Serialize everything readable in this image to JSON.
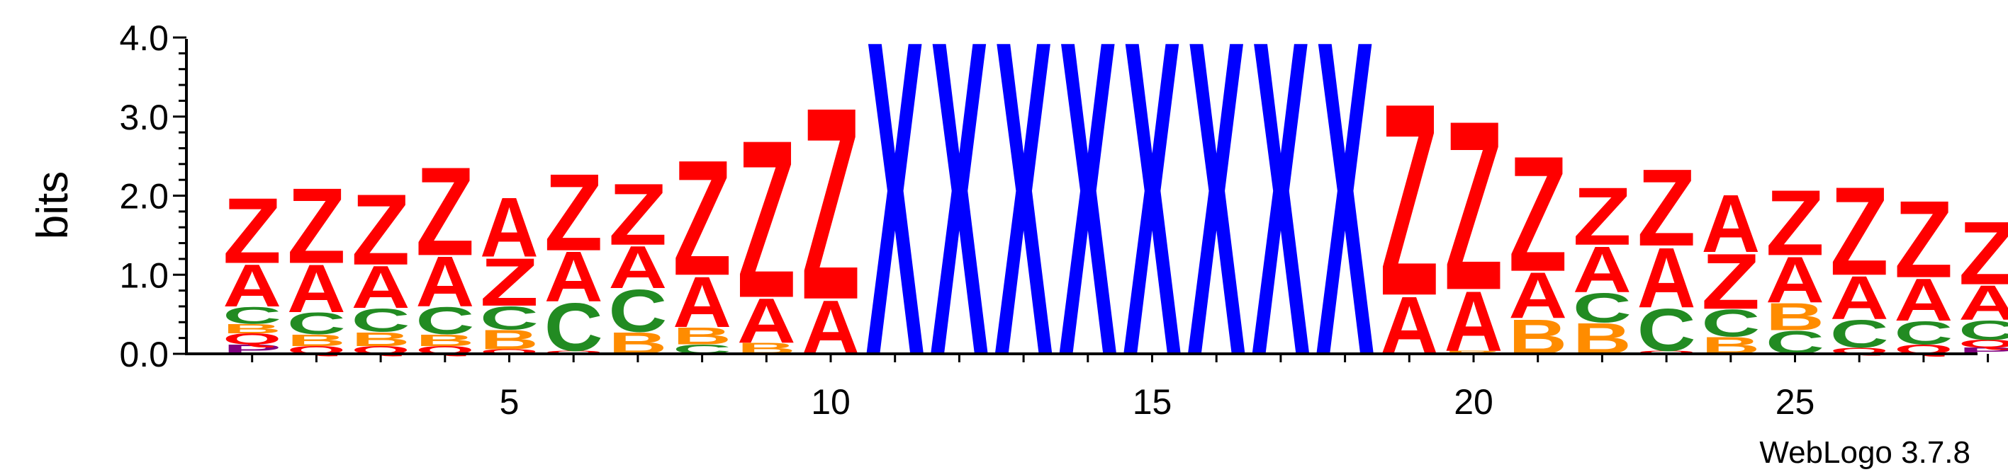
{
  "chart_data": {
    "type": "sequence-logo",
    "ylabel": "bits",
    "ylim": [
      0,
      4.0
    ],
    "yticks": [
      "0.0",
      "1.0",
      "2.0",
      "3.0",
      "4.0"
    ],
    "xticks": [
      5,
      10,
      15,
      20,
      25
    ],
    "grid": false,
    "credit": "WebLogo 3.7.8",
    "colors": {
      "Z": "#ff0000",
      "A": "#ff0000",
      "X": "#0000ff",
      "C": "#228b22",
      "B": "#ff8c00",
      "Q": "#ff0000",
      "P": "#800080"
    },
    "positions": [
      {
        "pos": 1,
        "stack": [
          {
            "l": "P",
            "h": 0.12
          },
          {
            "l": "Q",
            "h": 0.14
          },
          {
            "l": "B",
            "h": 0.12
          },
          {
            "l": "C",
            "h": 0.22
          },
          {
            "l": "A",
            "h": 0.55
          },
          {
            "l": "Z",
            "h": 0.85
          }
        ]
      },
      {
        "pos": 2,
        "stack": [
          {
            "l": "Q",
            "h": 0.1
          },
          {
            "l": "B",
            "h": 0.15
          },
          {
            "l": "C",
            "h": 0.28
          },
          {
            "l": "A",
            "h": 0.62
          },
          {
            "l": "Z",
            "h": 0.98
          }
        ]
      },
      {
        "pos": 3,
        "stack": [
          {
            "l": "Q",
            "h": 0.1
          },
          {
            "l": "B",
            "h": 0.18
          },
          {
            "l": "C",
            "h": 0.3
          },
          {
            "l": "A",
            "h": 0.55
          },
          {
            "l": "Z",
            "h": 0.92
          }
        ]
      },
      {
        "pos": 4,
        "stack": [
          {
            "l": "Q",
            "h": 0.1
          },
          {
            "l": "B",
            "h": 0.15
          },
          {
            "l": "C",
            "h": 0.35
          },
          {
            "l": "A",
            "h": 0.65
          },
          {
            "l": "Z",
            "h": 1.15
          }
        ]
      },
      {
        "pos": 5,
        "stack": [
          {
            "l": "Q",
            "h": 0.06
          },
          {
            "l": "B",
            "h": 0.25
          },
          {
            "l": "C",
            "h": 0.3
          },
          {
            "l": "Z",
            "h": 0.62
          },
          {
            "l": "A",
            "h": 0.77
          }
        ]
      },
      {
        "pos": 6,
        "stack": [
          {
            "l": "Q",
            "h": 0.04
          },
          {
            "l": "C",
            "h": 0.62
          },
          {
            "l": "A",
            "h": 0.65
          },
          {
            "l": "Z",
            "h": 1.0
          }
        ]
      },
      {
        "pos": 7,
        "stack": [
          {
            "l": "B",
            "h": 0.28
          },
          {
            "l": "C",
            "h": 0.55
          },
          {
            "l": "A",
            "h": 0.55
          },
          {
            "l": "Z",
            "h": 0.8
          }
        ]
      },
      {
        "pos": 8,
        "stack": [
          {
            "l": "C",
            "h": 0.12
          },
          {
            "l": "B",
            "h": 0.22
          },
          {
            "l": "A",
            "h": 0.66
          },
          {
            "l": "Z",
            "h": 1.5
          }
        ]
      },
      {
        "pos": 9,
        "stack": [
          {
            "l": "B",
            "h": 0.14
          },
          {
            "l": "A",
            "h": 0.58
          },
          {
            "l": "Z",
            "h": 2.05
          }
        ]
      },
      {
        "pos": 10,
        "stack": [
          {
            "l": "A",
            "h": 0.7
          },
          {
            "l": "Z",
            "h": 2.5
          }
        ]
      },
      {
        "pos": 11,
        "stack": [
          {
            "l": "X",
            "h": 4.1
          }
        ]
      },
      {
        "pos": 12,
        "stack": [
          {
            "l": "X",
            "h": 4.1
          }
        ]
      },
      {
        "pos": 13,
        "stack": [
          {
            "l": "X",
            "h": 4.1
          }
        ]
      },
      {
        "pos": 14,
        "stack": [
          {
            "l": "X",
            "h": 4.1
          }
        ]
      },
      {
        "pos": 15,
        "stack": [
          {
            "l": "X",
            "h": 4.1
          }
        ]
      },
      {
        "pos": 16,
        "stack": [
          {
            "l": "X",
            "h": 4.1
          }
        ]
      },
      {
        "pos": 17,
        "stack": [
          {
            "l": "X",
            "h": 4.1
          }
        ]
      },
      {
        "pos": 18,
        "stack": [
          {
            "l": "X",
            "h": 4.1
          }
        ]
      },
      {
        "pos": 19,
        "stack": [
          {
            "l": "A",
            "h": 0.75
          },
          {
            "l": "Z",
            "h": 2.5
          }
        ]
      },
      {
        "pos": 20,
        "stack": [
          {
            "l": "B",
            "h": 0.04
          },
          {
            "l": "A",
            "h": 0.78
          },
          {
            "l": "Z",
            "h": 2.2
          }
        ]
      },
      {
        "pos": 21,
        "stack": [
          {
            "l": "B",
            "h": 0.45
          },
          {
            "l": "A",
            "h": 0.6
          },
          {
            "l": "Z",
            "h": 1.5
          }
        ]
      },
      {
        "pos": 22,
        "stack": [
          {
            "l": "B",
            "h": 0.4
          },
          {
            "l": "C",
            "h": 0.38
          },
          {
            "l": "A",
            "h": 0.6
          },
          {
            "l": "Z",
            "h": 0.75
          }
        ]
      },
      {
        "pos": 23,
        "stack": [
          {
            "l": "Q",
            "h": 0.04
          },
          {
            "l": "C",
            "h": 0.55
          },
          {
            "l": "A",
            "h": 0.78
          },
          {
            "l": "Z",
            "h": 1.0
          }
        ]
      },
      {
        "pos": 24,
        "stack": [
          {
            "l": "B",
            "h": 0.22
          },
          {
            "l": "C",
            "h": 0.35
          },
          {
            "l": "Z",
            "h": 0.72
          },
          {
            "l": "A",
            "h": 0.75
          }
        ]
      },
      {
        "pos": 25,
        "stack": [
          {
            "l": "C",
            "h": 0.3
          },
          {
            "l": "B",
            "h": 0.35
          },
          {
            "l": "A",
            "h": 0.6
          },
          {
            "l": "Z",
            "h": 0.85
          }
        ]
      },
      {
        "pos": 26,
        "stack": [
          {
            "l": "Q",
            "h": 0.08
          },
          {
            "l": "C",
            "h": 0.36
          },
          {
            "l": "A",
            "h": 0.56
          },
          {
            "l": "Z",
            "h": 1.15
          }
        ]
      },
      {
        "pos": 27,
        "stack": [
          {
            "l": "Q",
            "h": 0.12
          },
          {
            "l": "C",
            "h": 0.3
          },
          {
            "l": "A",
            "h": 0.55
          },
          {
            "l": "Z",
            "h": 1.0
          }
        ]
      },
      {
        "pos": 28,
        "stack": [
          {
            "l": "P",
            "h": 0.08
          },
          {
            "l": "Q",
            "h": 0.1
          },
          {
            "l": "C",
            "h": 0.25
          },
          {
            "l": "A",
            "h": 0.45
          },
          {
            "l": "Z",
            "h": 0.82
          }
        ]
      }
    ]
  }
}
